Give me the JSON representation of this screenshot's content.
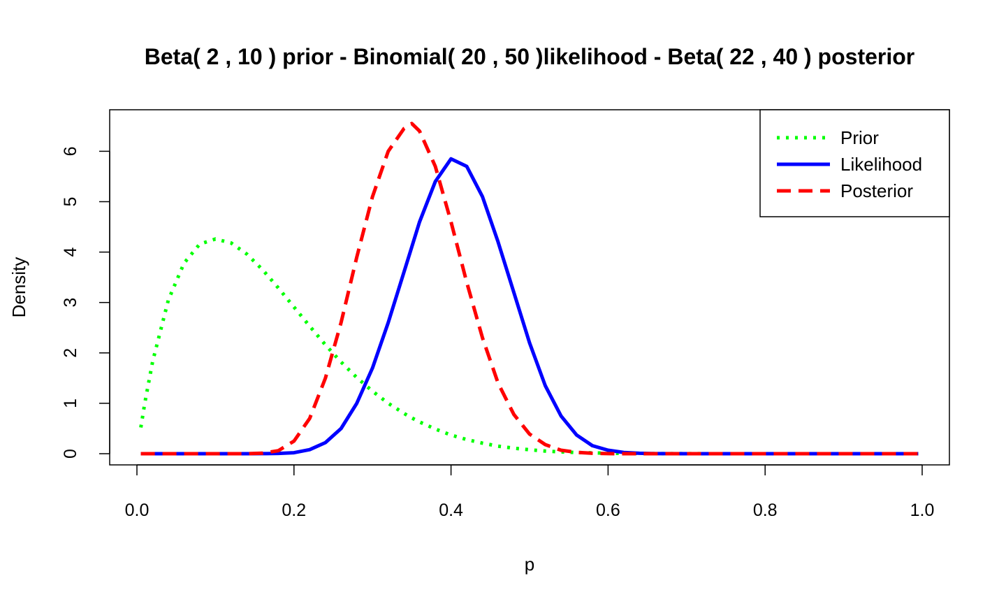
{
  "chart_data": {
    "type": "line",
    "title": "Beta( 2 , 10 ) prior - Binomial( 20 , 50 )likelihood - Beta( 22 , 40 ) posterior",
    "xlabel": "p",
    "ylabel": "Density",
    "xlim": [
      0,
      1
    ],
    "ylim": [
      0,
      6.5
    ],
    "x_ticks": [
      "0.0",
      "0.2",
      "0.4",
      "0.6",
      "0.8",
      "1.0"
    ],
    "x_tick_values": [
      0,
      0.2,
      0.4,
      0.6,
      0.8,
      1.0
    ],
    "y_ticks": [
      "0",
      "1",
      "2",
      "3",
      "4",
      "5",
      "6"
    ],
    "y_tick_values": [
      0,
      1,
      2,
      3,
      4,
      5,
      6
    ],
    "grid": false,
    "legend_position": "top-right",
    "x": [
      0.005,
      0.01,
      0.02,
      0.04,
      0.06,
      0.08,
      0.1,
      0.12,
      0.14,
      0.16,
      0.18,
      0.2,
      0.22,
      0.24,
      0.26,
      0.28,
      0.3,
      0.32,
      0.34,
      0.35,
      0.36,
      0.38,
      0.4,
      0.42,
      0.44,
      0.46,
      0.48,
      0.5,
      0.52,
      0.54,
      0.56,
      0.58,
      0.6,
      0.62,
      0.64,
      0.66,
      0.7,
      0.75,
      0.8,
      0.85,
      0.9,
      0.95,
      0.995
    ],
    "series": [
      {
        "name": "Prior",
        "color": "#00ff00",
        "style": "dotted",
        "values": [
          0.52,
          1.0,
          1.83,
          3.05,
          3.78,
          4.16,
          4.26,
          4.18,
          3.96,
          3.65,
          3.29,
          2.91,
          2.53,
          2.16,
          1.82,
          1.51,
          1.24,
          1.0,
          0.8,
          0.71,
          0.63,
          0.49,
          0.37,
          0.28,
          0.21,
          0.15,
          0.11,
          0.077,
          0.053,
          0.036,
          0.024,
          0.016,
          0.01,
          0.006,
          0.004,
          0.002,
          0.001,
          0.0,
          0.0,
          0.0,
          0.0,
          0.0,
          0.0
        ]
      },
      {
        "name": "Likelihood",
        "color": "#0000ff",
        "style": "solid",
        "values": [
          0.0,
          0.0,
          0.0,
          0.0,
          0.0,
          0.0,
          0.0,
          0.0,
          0.0,
          0.001,
          0.005,
          0.02,
          0.08,
          0.22,
          0.5,
          1.0,
          1.7,
          2.6,
          3.6,
          4.1,
          4.6,
          5.4,
          5.85,
          5.7,
          5.1,
          4.2,
          3.2,
          2.2,
          1.35,
          0.75,
          0.37,
          0.16,
          0.07,
          0.025,
          0.008,
          0.002,
          0.0,
          0.0,
          0.0,
          0.0,
          0.0,
          0.0,
          0.0
        ]
      },
      {
        "name": "Posterior",
        "color": "#ff0000",
        "style": "dashed",
        "values": [
          0.0,
          0.0,
          0.0,
          0.0,
          0.0,
          0.0,
          0.0,
          0.0,
          0.0,
          0.01,
          0.06,
          0.25,
          0.7,
          1.5,
          2.6,
          3.9,
          5.1,
          6.0,
          6.45,
          6.55,
          6.4,
          5.7,
          4.6,
          3.4,
          2.3,
          1.4,
          0.78,
          0.39,
          0.18,
          0.07,
          0.026,
          0.008,
          0.002,
          0.0,
          0.0,
          0.0,
          0.0,
          0.0,
          0.0,
          0.0,
          0.0,
          0.0,
          0.0
        ]
      }
    ]
  }
}
